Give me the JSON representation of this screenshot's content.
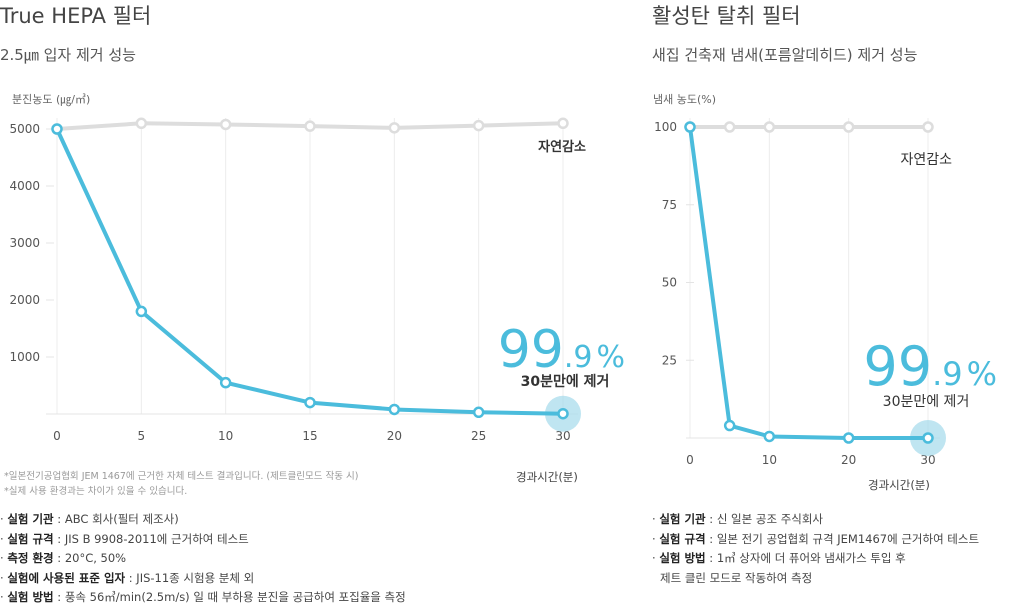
{
  "left": {
    "title": "True HEPA 필터",
    "subtitle": "2.5㎛ 입자 제거 성능",
    "notes": [
      "*일본전기공업협회 JEM 1467에 근거한 자체 테스트 결과입니다. (제트클린모드 작동 시)",
      "*실제 사용 환경과는 차이가 있을 수 있습니다."
    ],
    "specs": [
      {
        "label": "실험 기관",
        "value": " : ABC 회사(필터 제조사)"
      },
      {
        "label": "실험 규격",
        "value": " : JIS B 9908-2011에 근거하여 테스트"
      },
      {
        "label": "측정 환경",
        "value": " : 20°C, 50%"
      },
      {
        "label": "실험에 사용된 표준 입자",
        "value": " : JIS-11종 시험용 분체 외"
      },
      {
        "label": "실험 방법",
        "value": " : 풍속 56㎥/min(2.5m/s) 일 때 부하용 분진을 공급하여 포집율을 측정"
      }
    ]
  },
  "right": {
    "title": "활성탄 탈취 필터",
    "subtitle": "새집 건축재 냄새(포름알데히드) 제거 성능",
    "specs": [
      {
        "label": "실험 기관",
        "value": " : 신 일본 공조 주식회사"
      },
      {
        "label": "실험 규격",
        "value": " : 일본 전기 공업협회 규격  JEM1467에 근거하여 테스트"
      },
      {
        "label": "실험 방법",
        "value": " : 1㎥ 상자에 더 퓨어와 냄새가스 투입 후"
      },
      {
        "label": "",
        "value": "제트 클린 모드로 작동하여 측정"
      }
    ]
  },
  "colors": {
    "filter": "#4bbcdc",
    "natural": "#dddddd",
    "highlight": "#a9dcec"
  },
  "chart_data": [
    {
      "type": "line",
      "ylabel": "분진농도 (㎍/㎥)",
      "xlabel": "경과시간(분)",
      "x": [
        0,
        5,
        10,
        15,
        20,
        25,
        30
      ],
      "xticks": [
        "0",
        "5",
        "10",
        "15",
        "20",
        "25",
        "30"
      ],
      "yticks": [
        "5000",
        "4000",
        "3000",
        "2000",
        "1000"
      ],
      "ylim": [
        0,
        5000
      ],
      "grid": "vertical",
      "series": [
        {
          "name": "자연감소",
          "values": [
            5000,
            5100,
            5080,
            5050,
            5020,
            5060,
            5100
          ],
          "color": "#dddddd"
        },
        {
          "values": [
            5000,
            1800,
            550,
            200,
            80,
            30,
            5
          ],
          "color": "#4bbcdc"
        }
      ],
      "annotation": {
        "value": "99.9",
        "main": "99",
        "decimal": ".9",
        "unit": "%",
        "label": "30분만에 제거"
      }
    },
    {
      "type": "line",
      "ylabel": "냄새 농도(%)",
      "xlabel": "경과시간(분)",
      "x": [
        0,
        5,
        10,
        20,
        30
      ],
      "xticks": [
        "0",
        "10",
        "20",
        "30"
      ],
      "xtick_values": [
        0,
        10,
        20,
        30
      ],
      "yticks": [
        "100",
        "75",
        "50",
        "25"
      ],
      "ylim": [
        0,
        100
      ],
      "grid": "vertical",
      "series": [
        {
          "name": "자연감소",
          "values": [
            100,
            100,
            100,
            100,
            100
          ],
          "color": "#dddddd"
        },
        {
          "values": [
            100,
            4,
            0.5,
            0,
            0
          ],
          "color": "#4bbcdc"
        }
      ],
      "annotation": {
        "value": "99.9",
        "main": "99",
        "decimal": ".9",
        "unit": "%",
        "label": "30분만에 제거"
      }
    }
  ]
}
